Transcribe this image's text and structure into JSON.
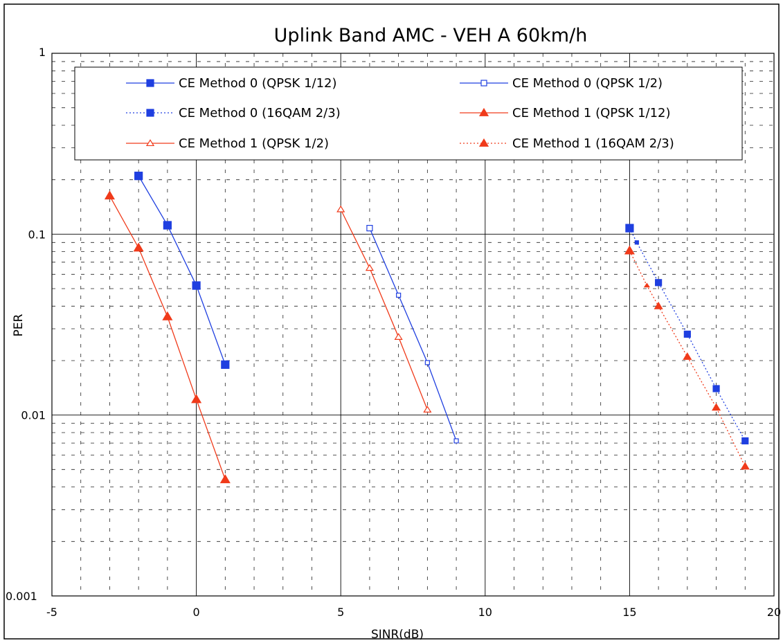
{
  "chart_data": {
    "type": "line",
    "title": "Uplink Band AMC - VEH A 60km/h",
    "xlabel": "SINR(dB)",
    "ylabel": "PER",
    "xlim": [
      -5,
      20
    ],
    "ylim": [
      0.001,
      1
    ],
    "y_scale": "log",
    "grid": true,
    "legend_position": "top",
    "x_ticks": [
      "-5",
      "0",
      "5",
      "10",
      "15",
      "20"
    ],
    "y_ticks": [
      "0.001",
      "0.01",
      "0.1",
      "1"
    ],
    "series": [
      {
        "name": "CE Method 0 (QPSK 1/12)",
        "color": "#1f3fe0",
        "line": "solid",
        "marker": "square-filled",
        "x": [
          -2,
          -1,
          0,
          1
        ],
        "y": [
          0.21,
          0.112,
          0.052,
          0.019
        ]
      },
      {
        "name": "CE Method 0 (QPSK 1/2)",
        "color": "#1f3fe0",
        "line": "solid",
        "marker": "square-open",
        "x": [
          6,
          7,
          8,
          9
        ],
        "y": [
          0.108,
          0.046,
          0.0195,
          0.0072
        ]
      },
      {
        "name": "CE Method 0 (16QAM 2/3)",
        "color": "#1f3fe0",
        "line": "dashed",
        "marker": "square-filled",
        "x": [
          15,
          15.25,
          16,
          17,
          18,
          19
        ],
        "y": [
          0.108,
          0.09,
          0.054,
          0.028,
          0.014,
          0.0072
        ]
      },
      {
        "name": "CE Method 1 (QPSK 1/12)",
        "color": "#f03a1a",
        "line": "solid",
        "marker": "triangle-filled",
        "x": [
          -3,
          -2,
          -1,
          0,
          1
        ],
        "y": [
          0.163,
          0.084,
          0.035,
          0.0122,
          0.0044
        ]
      },
      {
        "name": "CE Method 1 (QPSK 1/2)",
        "color": "#f03a1a",
        "line": "solid",
        "marker": "triangle-open",
        "x": [
          5,
          6,
          7,
          8
        ],
        "y": [
          0.137,
          0.065,
          0.027,
          0.0107
        ]
      },
      {
        "name": "CE Method 1 (16QAM 2/3)",
        "color": "#f03a1a",
        "line": "dashed",
        "marker": "triangle-filled",
        "x": [
          15,
          15.6,
          16,
          17,
          18,
          19
        ],
        "y": [
          0.081,
          0.052,
          0.04,
          0.021,
          0.011,
          0.0052
        ]
      }
    ]
  }
}
